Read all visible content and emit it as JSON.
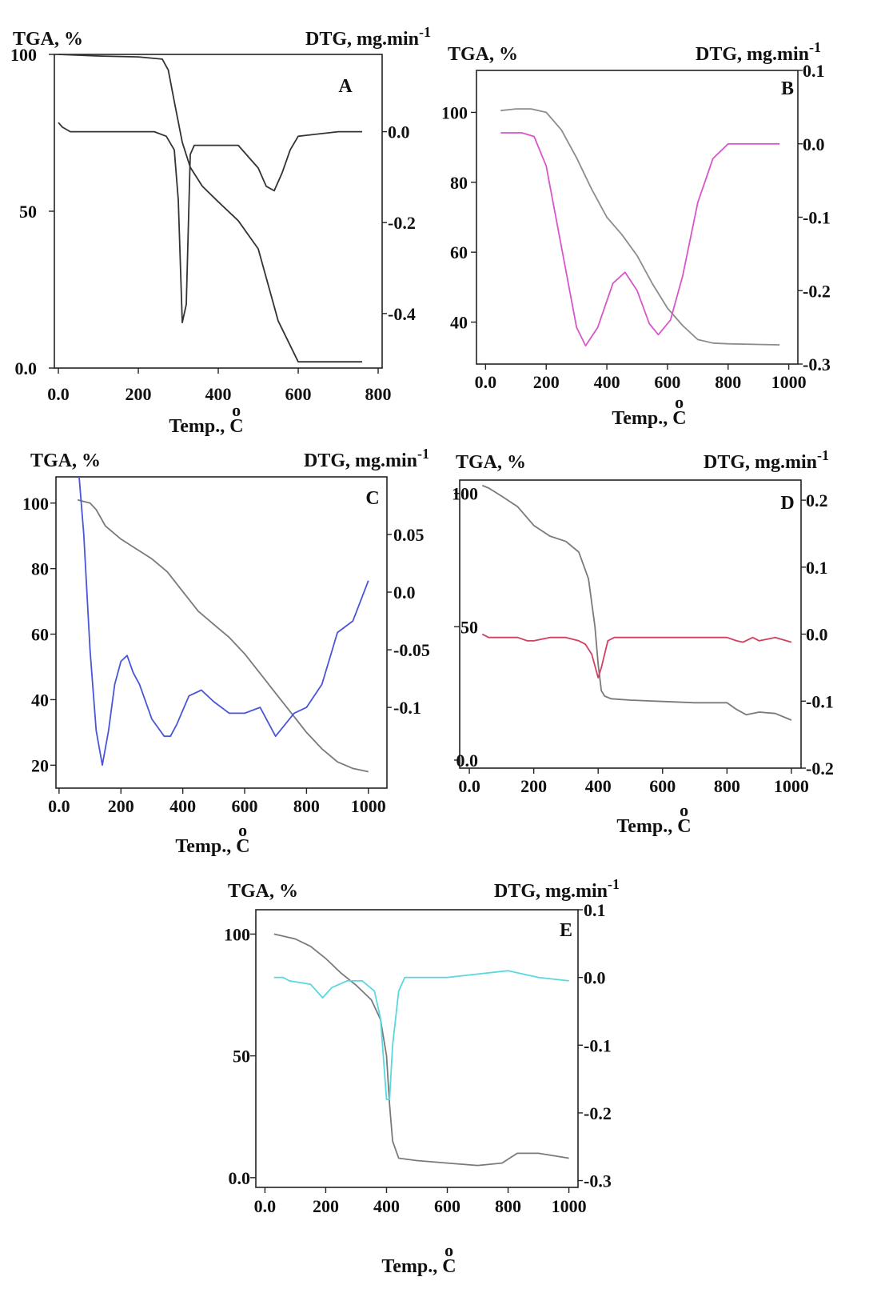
{
  "chart_data": [
    {
      "type": "line",
      "panel": "A",
      "left_axis_title": "TGA, %",
      "right_axis_title": "DTG, mg.min",
      "right_axis_exponent": "-1",
      "xlabel": "Temp., ",
      "xlabel_unit": "C",
      "xlabel_degree": "o",
      "xlim": [
        -10,
        810
      ],
      "ylim": [
        0,
        100
      ],
      "y2lim": [
        -0.52,
        0.17
      ],
      "xticks": [
        {
          "v": 0,
          "label": "0.0"
        },
        {
          "v": 200,
          "label": "200"
        },
        {
          "v": 400,
          "label": "400"
        },
        {
          "v": 600,
          "label": "600"
        },
        {
          "v": 800,
          "label": "800"
        }
      ],
      "yticks": [
        {
          "v": 100,
          "label": "100"
        },
        {
          "v": 50,
          "label": "50"
        },
        {
          "v": 0,
          "label": "0.0"
        }
      ],
      "y2ticks": [
        {
          "v": 0,
          "label": "0.0"
        },
        {
          "v": -0.2,
          "label": "-0.2"
        },
        {
          "v": -0.4,
          "label": "-0.4"
        }
      ],
      "series": [
        {
          "axis": "left",
          "color": "#333333",
          "x": [
            0,
            100,
            200,
            260,
            275,
            290,
            310,
            330,
            360,
            400,
            450,
            500,
            550,
            600,
            700,
            760
          ],
          "y": [
            100,
            99.5,
            99.2,
            98.5,
            95,
            85,
            72,
            64,
            58,
            53,
            47,
            38,
            15,
            2,
            2,
            2
          ]
        },
        {
          "axis": "right",
          "color": "#333333",
          "x": [
            0,
            10,
            30,
            100,
            200,
            240,
            270,
            290,
            300,
            310,
            320,
            330,
            340,
            350,
            400,
            450,
            500,
            520,
            540,
            560,
            580,
            600,
            700,
            760
          ],
          "y": [
            0.02,
            0.01,
            0.0,
            0.0,
            0.0,
            0.0,
            -0.01,
            -0.04,
            -0.15,
            -0.42,
            -0.38,
            -0.05,
            -0.03,
            -0.03,
            -0.03,
            -0.03,
            -0.08,
            -0.12,
            -0.13,
            -0.09,
            -0.04,
            -0.01,
            0.0,
            0.0
          ]
        }
      ]
    },
    {
      "type": "line",
      "panel": "B",
      "left_axis_title": "TGA, %",
      "right_axis_title": "DTG, mg.min",
      "right_axis_exponent": "-1",
      "xlabel": "Temp., ",
      "xlabel_unit": "C",
      "xlabel_degree": "o",
      "xlim": [
        -30,
        1030
      ],
      "ylim": [
        28,
        112
      ],
      "y2lim": [
        -0.3,
        0.1
      ],
      "xticks": [
        {
          "v": 0,
          "label": "0.0"
        },
        {
          "v": 200,
          "label": "200"
        },
        {
          "v": 400,
          "label": "400"
        },
        {
          "v": 600,
          "label": "600"
        },
        {
          "v": 800,
          "label": "800"
        },
        {
          "v": 1000,
          "label": "1000"
        }
      ],
      "yticks": [
        {
          "v": 100,
          "label": "100"
        },
        {
          "v": 80,
          "label": "80"
        },
        {
          "v": 60,
          "label": "60"
        },
        {
          "v": 40,
          "label": "40"
        }
      ],
      "y2ticks": [
        {
          "v": 0.1,
          "label": "0.1"
        },
        {
          "v": 0.0,
          "label": "0.0"
        },
        {
          "v": -0.1,
          "label": "-0.1"
        },
        {
          "v": -0.2,
          "label": "-0.2"
        },
        {
          "v": -0.3,
          "label": "-0.3"
        }
      ],
      "series": [
        {
          "axis": "left",
          "color": "#8c8c8c",
          "x": [
            50,
            100,
            150,
            200,
            250,
            300,
            350,
            400,
            450,
            500,
            550,
            600,
            650,
            700,
            750,
            800,
            900,
            970
          ],
          "y": [
            100.5,
            101,
            101,
            100,
            95,
            87,
            78,
            70,
            65,
            59,
            51,
            44,
            39,
            35,
            34,
            33.8,
            33.6,
            33.5
          ]
        },
        {
          "axis": "right",
          "color": "#d657c8",
          "x": [
            50,
            120,
            160,
            200,
            250,
            300,
            330,
            370,
            420,
            460,
            500,
            540,
            570,
            610,
            650,
            700,
            750,
            800,
            850,
            970
          ],
          "y": [
            0.015,
            0.015,
            0.01,
            -0.03,
            -0.14,
            -0.25,
            -0.275,
            -0.25,
            -0.19,
            -0.175,
            -0.2,
            -0.245,
            -0.26,
            -0.24,
            -0.18,
            -0.08,
            -0.02,
            0.0,
            0.0,
            0.0
          ]
        }
      ]
    },
    {
      "type": "line",
      "panel": "C",
      "left_axis_title": "TGA, %",
      "right_axis_title": "DTG, mg.min",
      "right_axis_exponent": "-1",
      "xlabel": "Temp., ",
      "xlabel_unit": "C",
      "xlabel_degree": "o",
      "xlim": [
        -10,
        1060
      ],
      "ylim": [
        13,
        108
      ],
      "y2lim": [
        -0.17,
        0.1
      ],
      "xticks": [
        {
          "v": 0,
          "label": "0.0"
        },
        {
          "v": 200,
          "label": "200"
        },
        {
          "v": 400,
          "label": "400"
        },
        {
          "v": 600,
          "label": "600"
        },
        {
          "v": 800,
          "label": "800"
        },
        {
          "v": 1000,
          "label": "1000"
        }
      ],
      "yticks": [
        {
          "v": 100,
          "label": "100"
        },
        {
          "v": 80,
          "label": "80"
        },
        {
          "v": 60,
          "label": "60"
        },
        {
          "v": 40,
          "label": "40"
        },
        {
          "v": 20,
          "label": "20"
        }
      ],
      "y2ticks": [
        {
          "v": 0.05,
          "label": "0.05"
        },
        {
          "v": 0.0,
          "label": "0.0"
        },
        {
          "v": -0.05,
          "label": "-0.05"
        },
        {
          "v": -0.1,
          "label": "-0.1"
        }
      ],
      "series": [
        {
          "axis": "left",
          "color": "#7a7a7a",
          "x": [
            60,
            100,
            120,
            150,
            200,
            250,
            300,
            350,
            400,
            450,
            500,
            550,
            600,
            650,
            700,
            750,
            800,
            850,
            900,
            950,
            1000
          ],
          "y": [
            101,
            100,
            98,
            93,
            89,
            86,
            83,
            79,
            73,
            67,
            63,
            59,
            54,
            48,
            42,
            36,
            30,
            25,
            21,
            19,
            18
          ]
        },
        {
          "axis": "right",
          "color": "#4a55d8",
          "x": [
            65,
            80,
            100,
            120,
            140,
            160,
            180,
            200,
            220,
            240,
            260,
            300,
            340,
            360,
            380,
            420,
            460,
            500,
            550,
            600,
            650,
            680,
            700,
            730,
            760,
            800,
            850,
            900,
            950,
            1000
          ],
          "y": [
            0.1,
            0.05,
            -0.05,
            -0.12,
            -0.15,
            -0.12,
            -0.08,
            -0.06,
            -0.055,
            -0.07,
            -0.08,
            -0.11,
            -0.125,
            -0.125,
            -0.115,
            -0.09,
            -0.085,
            -0.095,
            -0.105,
            -0.105,
            -0.1,
            -0.115,
            -0.125,
            -0.115,
            -0.105,
            -0.1,
            -0.08,
            -0.035,
            -0.025,
            0.01
          ]
        }
      ]
    },
    {
      "type": "line",
      "panel": "D",
      "left_axis_title": "TGA, %",
      "right_axis_title": "DTG, mg.min",
      "right_axis_exponent": "-1",
      "xlabel": "Temp., ",
      "xlabel_unit": "C",
      "xlabel_degree": "o",
      "xlim": [
        -30,
        1030
      ],
      "ylim": [
        -3,
        105
      ],
      "y2lim": [
        -0.2,
        0.23
      ],
      "xticks": [
        {
          "v": 0,
          "label": "0.0"
        },
        {
          "v": 200,
          "label": "200"
        },
        {
          "v": 400,
          "label": "400"
        },
        {
          "v": 600,
          "label": "600"
        },
        {
          "v": 800,
          "label": "800"
        },
        {
          "v": 1000,
          "label": "1000"
        }
      ],
      "yticks": [
        {
          "v": 100,
          "label": "100"
        },
        {
          "v": 50,
          "label": "50"
        },
        {
          "v": 0,
          "label": "0.0"
        }
      ],
      "y2ticks": [
        {
          "v": 0.2,
          "label": "0.2"
        },
        {
          "v": 0.1,
          "label": "0.1"
        },
        {
          "v": 0.0,
          "label": "0.0"
        },
        {
          "v": -0.1,
          "label": "-0.1"
        },
        {
          "v": -0.2,
          "label": "-0.2"
        }
      ],
      "series": [
        {
          "axis": "left",
          "color": "#7a7a7a",
          "x": [
            40,
            60,
            100,
            150,
            200,
            250,
            300,
            340,
            370,
            390,
            400,
            410,
            420,
            440,
            500,
            600,
            700,
            800,
            830,
            860,
            900,
            950,
            1000
          ],
          "y": [
            103,
            102,
            99,
            95,
            88,
            84,
            82,
            78,
            68,
            50,
            36,
            26,
            24,
            23,
            22.5,
            22,
            21.5,
            21.5,
            19,
            17,
            18,
            17.5,
            15
          ]
        },
        {
          "axis": "right",
          "color": "#d0405e",
          "x": [
            40,
            60,
            100,
            150,
            180,
            200,
            250,
            300,
            340,
            360,
            380,
            400,
            410,
            430,
            450,
            500,
            600,
            700,
            800,
            830,
            850,
            880,
            900,
            950,
            1000
          ],
          "y": [
            0.0,
            -0.005,
            -0.005,
            -0.005,
            -0.01,
            -0.01,
            -0.005,
            -0.005,
            -0.01,
            -0.015,
            -0.03,
            -0.065,
            -0.05,
            -0.01,
            -0.005,
            -0.005,
            -0.005,
            -0.005,
            -0.005,
            -0.01,
            -0.012,
            -0.005,
            -0.01,
            -0.005,
            -0.012
          ]
        }
      ]
    },
    {
      "type": "line",
      "panel": "E",
      "left_axis_title": "TGA, %",
      "right_axis_title": "DTG, mg.min",
      "right_axis_exponent": "-1",
      "xlabel": "Temp., ",
      "xlabel_unit": "C",
      "xlabel_degree": "o",
      "xlim": [
        -30,
        1030
      ],
      "ylim": [
        -4,
        110
      ],
      "y2lim": [
        -0.31,
        0.1
      ],
      "xticks": [
        {
          "v": 0,
          "label": "0.0"
        },
        {
          "v": 200,
          "label": "200"
        },
        {
          "v": 400,
          "label": "400"
        },
        {
          "v": 600,
          "label": "600"
        },
        {
          "v": 800,
          "label": "800"
        },
        {
          "v": 1000,
          "label": "1000"
        }
      ],
      "yticks": [
        {
          "v": 100,
          "label": "100"
        },
        {
          "v": 50,
          "label": "50"
        },
        {
          "v": 0,
          "label": "0.0"
        }
      ],
      "y2ticks": [
        {
          "v": 0.1,
          "label": "0.1"
        },
        {
          "v": 0.0,
          "label": "0.0"
        },
        {
          "v": -0.1,
          "label": "-0.1"
        },
        {
          "v": -0.2,
          "label": "-0.2"
        },
        {
          "v": -0.3,
          "label": "-0.3"
        }
      ],
      "series": [
        {
          "axis": "left",
          "color": "#7a7a7a",
          "x": [
            30,
            100,
            150,
            200,
            250,
            300,
            350,
            380,
            400,
            410,
            420,
            440,
            500,
            600,
            700,
            780,
            830,
            900,
            1000
          ],
          "y": [
            100,
            98,
            95,
            90,
            84,
            79,
            73,
            65,
            50,
            30,
            15,
            8,
            7,
            6,
            5,
            6,
            10,
            10,
            8
          ]
        },
        {
          "axis": "right",
          "color": "#59d8df",
          "x": [
            30,
            60,
            80,
            150,
            190,
            220,
            270,
            320,
            360,
            380,
            390,
            400,
            410,
            420,
            440,
            460,
            500,
            600,
            700,
            800,
            900,
            1000
          ],
          "y": [
            0.0,
            0.0,
            -0.005,
            -0.01,
            -0.03,
            -0.015,
            -0.005,
            -0.005,
            -0.02,
            -0.06,
            -0.12,
            -0.18,
            -0.18,
            -0.1,
            -0.02,
            0.0,
            0.0,
            0.0,
            0.005,
            0.01,
            0.0,
            -0.005
          ]
        }
      ]
    }
  ]
}
